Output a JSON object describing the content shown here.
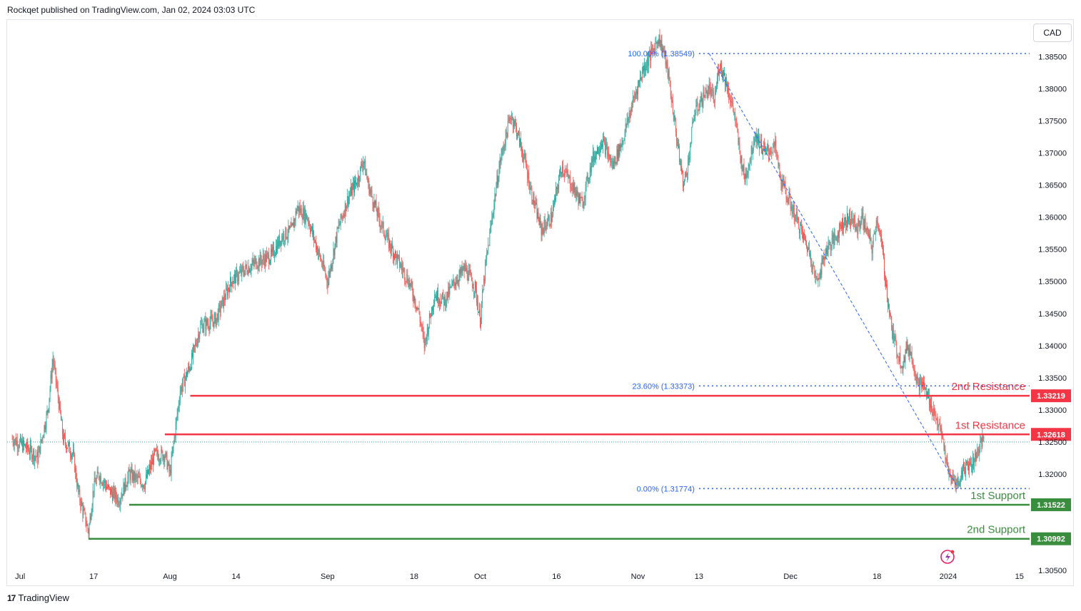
{
  "header": {
    "published": "Rockqet published on TradingView.com, Jan 02, 2024 03:03 UTC"
  },
  "currency_button": "CAD",
  "footer": {
    "logo_glyph": "17",
    "brand": "TradingView"
  },
  "chart_data": {
    "type": "candlestick",
    "title": "",
    "currency": "CAD",
    "ylim": [
      1.305,
      1.3905
    ],
    "y_ticks": [
      1.385,
      1.38,
      1.375,
      1.37,
      1.365,
      1.36,
      1.355,
      1.35,
      1.345,
      1.34,
      1.335,
      1.33,
      1.325,
      1.32,
      1.305
    ],
    "y_tick_labels": [
      "1.38500",
      "1.38000",
      "1.37500",
      "1.37000",
      "1.36500",
      "1.36000",
      "1.35500",
      "1.35000",
      "1.34500",
      "1.34000",
      "1.33500",
      "1.33000",
      "1.32500",
      "1.32000",
      "1.30500"
    ],
    "x_ticks": [
      {
        "label": "Jul",
        "day": 0
      },
      {
        "label": "17",
        "day": 16
      },
      {
        "label": "Aug",
        "day": 31
      },
      {
        "label": "14",
        "day": 44
      },
      {
        "label": "Sep",
        "day": 62
      },
      {
        "label": "18",
        "day": 79
      },
      {
        "label": "Oct",
        "day": 92
      },
      {
        "label": "16",
        "day": 107
      },
      {
        "label": "Nov",
        "day": 123
      },
      {
        "label": "13",
        "day": 135
      },
      {
        "label": "Dec",
        "day": 153
      },
      {
        "label": "18",
        "day": 170
      },
      {
        "label": "2024",
        "day": 184
      },
      {
        "label": "15",
        "day": 198
      }
    ],
    "x_range_days": [
      -1,
      200
    ],
    "price_path": [
      [
        0,
        1.3255
      ],
      [
        3,
        1.324
      ],
      [
        5,
        1.3225
      ],
      [
        7,
        1.33
      ],
      [
        8,
        1.338
      ],
      [
        9,
        1.332
      ],
      [
        10,
        1.3255
      ],
      [
        12,
        1.323
      ],
      [
        13,
        1.317
      ],
      [
        15,
        1.311
      ],
      [
        16,
        1.318
      ],
      [
        17,
        1.32
      ],
      [
        19,
        1.3175
      ],
      [
        21,
        1.316
      ],
      [
        23,
        1.32
      ],
      [
        26,
        1.3185
      ],
      [
        28,
        1.323
      ],
      [
        30,
        1.323
      ],
      [
        31,
        1.32
      ],
      [
        33,
        1.333
      ],
      [
        35,
        1.337
      ],
      [
        37,
        1.343
      ],
      [
        40,
        1.344
      ],
      [
        43,
        1.35
      ],
      [
        46,
        1.352
      ],
      [
        48,
        1.353
      ],
      [
        51,
        1.354
      ],
      [
        53,
        1.357
      ],
      [
        55,
        1.358
      ],
      [
        56,
        1.3615
      ],
      [
        58,
        1.36
      ],
      [
        60,
        1.355
      ],
      [
        62,
        1.35
      ],
      [
        64,
        1.358
      ],
      [
        66,
        1.363
      ],
      [
        68,
        1.366
      ],
      [
        69,
        1.369
      ],
      [
        70,
        1.365
      ],
      [
        72,
        1.36
      ],
      [
        74,
        1.356
      ],
      [
        76,
        1.353
      ],
      [
        78,
        1.35
      ],
      [
        80,
        1.345
      ],
      [
        81,
        1.34
      ],
      [
        83,
        1.348
      ],
      [
        85,
        1.347
      ],
      [
        87,
        1.35
      ],
      [
        89,
        1.352
      ],
      [
        91,
        1.349
      ],
      [
        92,
        1.344
      ],
      [
        93,
        1.352
      ],
      [
        95,
        1.364
      ],
      [
        96,
        1.369
      ],
      [
        98,
        1.376
      ],
      [
        99,
        1.374
      ],
      [
        101,
        1.368
      ],
      [
        102,
        1.364
      ],
      [
        104,
        1.358
      ],
      [
        106,
        1.36
      ],
      [
        108,
        1.368
      ],
      [
        110,
        1.365
      ],
      [
        112,
        1.362
      ],
      [
        114,
        1.369
      ],
      [
        116,
        1.372
      ],
      [
        118,
        1.368
      ],
      [
        120,
        1.372
      ],
      [
        122,
        1.378
      ],
      [
        124,
        1.383
      ],
      [
        126,
        1.386
      ],
      [
        127,
        1.388
      ],
      [
        128,
        1.386
      ],
      [
        129,
        1.382
      ],
      [
        130,
        1.376
      ],
      [
        131,
        1.37
      ],
      [
        132,
        1.365
      ],
      [
        133,
        1.369
      ],
      [
        134,
        1.376
      ],
      [
        136,
        1.379
      ],
      [
        137,
        1.38
      ],
      [
        138,
        1.378
      ],
      [
        139,
        1.384
      ],
      [
        140,
        1.382
      ],
      [
        141,
        1.379
      ],
      [
        142,
        1.376
      ],
      [
        143,
        1.37
      ],
      [
        144,
        1.366
      ],
      [
        145,
        1.369
      ],
      [
        146,
        1.373
      ],
      [
        148,
        1.37
      ],
      [
        150,
        1.371
      ],
      [
        151,
        1.366
      ],
      [
        153,
        1.362
      ],
      [
        155,
        1.358
      ],
      [
        157,
        1.354
      ],
      [
        158,
        1.35
      ],
      [
        159,
        1.352
      ],
      [
        160,
        1.355
      ],
      [
        162,
        1.357
      ],
      [
        163,
        1.359
      ],
      [
        165,
        1.36
      ],
      [
        166,
        1.358
      ],
      [
        167,
        1.36
      ],
      [
        168,
        1.358
      ],
      [
        169,
        1.355
      ],
      [
        170,
        1.36
      ],
      [
        171,
        1.355
      ],
      [
        172,
        1.348
      ],
      [
        173,
        1.342
      ],
      [
        174,
        1.339
      ],
      [
        175,
        1.337
      ],
      [
        176,
        1.34
      ],
      [
        177,
        1.338
      ],
      [
        178,
        1.334
      ],
      [
        179,
        1.334
      ],
      [
        180,
        1.332
      ],
      [
        181,
        1.33
      ],
      [
        182,
        1.328
      ],
      [
        183,
        1.325
      ],
      [
        184,
        1.32
      ],
      [
        185,
        1.319
      ],
      [
        186,
        1.3185
      ],
      [
        187,
        1.321
      ],
      [
        188,
        1.3215
      ],
      [
        189,
        1.322
      ],
      [
        190,
        1.324
      ],
      [
        191,
        1.3255
      ]
    ],
    "current_price_guide": 1.325,
    "fibonacci": {
      "levels": [
        {
          "label": "100.00% (1.38549)",
          "price": 1.38549,
          "start_day": 135
        },
        {
          "label": "23.60% (1.33373)",
          "price": 1.33373,
          "start_day": 135
        },
        {
          "label": "0.00% (1.31774)",
          "price": 1.31774,
          "start_day": 135
        }
      ],
      "trend_line": {
        "from": [
          137,
          1.38549
        ],
        "to": [
          186,
          1.31774
        ]
      }
    },
    "horizontal_levels": [
      {
        "name": "2nd Resistance",
        "price": 1.33219,
        "price_label": "1.33219",
        "start_day": 35,
        "color": "#f23645"
      },
      {
        "name": "1st Resistance",
        "price": 1.32618,
        "price_label": "1.32618",
        "start_day": 30,
        "color": "#f23645"
      },
      {
        "name": "1st Support",
        "price": 1.31522,
        "price_label": "1.31522",
        "start_day": 23,
        "color": "#388e3c"
      },
      {
        "name": "2nd Support",
        "price": 1.30992,
        "price_label": "1.30992",
        "start_day": 15,
        "color": "#388e3c"
      }
    ],
    "colors": {
      "up": "#26a69a",
      "down": "#ef5350",
      "fib": "#2962ff",
      "resistance": "#f23645",
      "support": "#388e3c"
    }
  }
}
